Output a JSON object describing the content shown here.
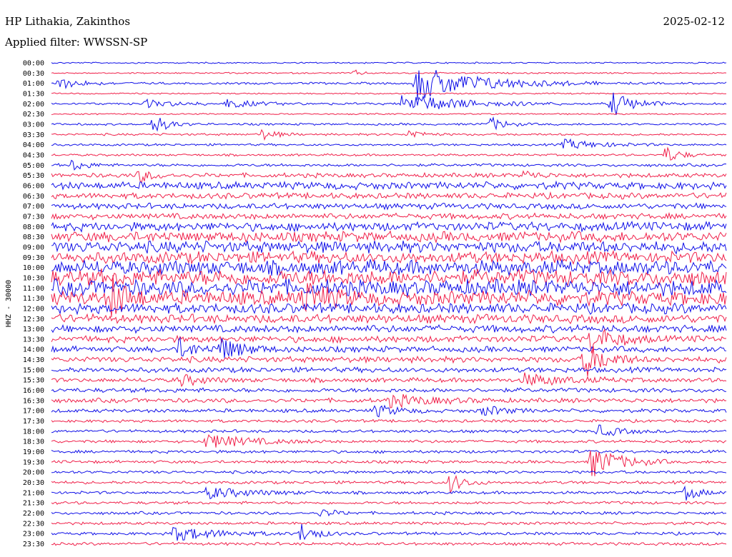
{
  "header": {
    "station": "HP Lithakia, Zakinthos",
    "filter": "Applied filter: WWSSN-SP",
    "date": "2025-02-12"
  },
  "colors": {
    "trace_a": "#1010e8",
    "trace_b": "#f0204a"
  },
  "chart_data": {
    "type": "line",
    "title": "HP Lithakia, Zakinthos",
    "subtitle": "Applied filter: WWSSN-SP",
    "ylabel": "HHZ - 30000",
    "xlabel": "",
    "y_tick_labels": [
      "00:00",
      "00:30",
      "01:00",
      "01:30",
      "02:00",
      "02:30",
      "03:00",
      "03:30",
      "04:00",
      "04:30",
      "05:00",
      "05:30",
      "06:00",
      "06:30",
      "07:00",
      "07:30",
      "08:00",
      "08:30",
      "09:00",
      "09:30",
      "10:00",
      "10:30",
      "11:00",
      "11:30",
      "12:00",
      "12:30",
      "13:00",
      "13:30",
      "14:00",
      "14:30",
      "15:00",
      "15:30",
      "16:00",
      "16:30",
      "17:00",
      "17:30",
      "18:00",
      "18:30",
      "19:00",
      "19:30",
      "20:00",
      "20:30",
      "21:00",
      "21:30",
      "22:00",
      "22:30",
      "23:00",
      "23:30"
    ],
    "series": [
      {
        "color": "#1010e8"
      },
      {
        "color": "#f0204a"
      }
    ],
    "noise_amplitude": [
      1,
      1,
      1.5,
      1,
      1.5,
      1,
      1.5,
      1.5,
      1.5,
      1.5,
      2,
      3,
      5,
      4,
      4,
      4,
      6,
      7,
      8,
      8,
      10,
      11,
      11,
      10,
      7,
      6,
      5,
      4.5,
      4,
      4,
      3.5,
      3,
      3,
      3,
      2.5,
      2,
      2,
      2,
      2,
      2,
      2,
      2,
      2,
      2,
      2,
      2,
      2,
      2
    ],
    "events": [
      {
        "line": 1,
        "x": 0.45,
        "amp": 4,
        "dur": 0.01
      },
      {
        "line": 2,
        "x": 0.01,
        "amp": 8,
        "dur": 0.03
      },
      {
        "line": 2,
        "x": 0.54,
        "amp": 24,
        "dur": 0.09
      },
      {
        "line": 4,
        "x": 0.52,
        "amp": 14,
        "dur": 0.08
      },
      {
        "line": 4,
        "x": 0.83,
        "amp": 18,
        "dur": 0.03
      },
      {
        "line": 4,
        "x": 0.14,
        "amp": 5,
        "dur": 0.04
      },
      {
        "line": 4,
        "x": 0.26,
        "amp": 6,
        "dur": 0.04
      },
      {
        "line": 6,
        "x": 0.15,
        "amp": 14,
        "dur": 0.02
      },
      {
        "line": 6,
        "x": 0.65,
        "amp": 10,
        "dur": 0.02
      },
      {
        "line": 7,
        "x": 0.31,
        "amp": 8,
        "dur": 0.02
      },
      {
        "line": 7,
        "x": 0.53,
        "amp": 7,
        "dur": 0.02
      },
      {
        "line": 8,
        "x": 0.76,
        "amp": 7,
        "dur": 0.05
      },
      {
        "line": 9,
        "x": 0.91,
        "amp": 12,
        "dur": 0.02
      },
      {
        "line": 10,
        "x": 0.03,
        "amp": 8,
        "dur": 0.02
      },
      {
        "line": 11,
        "x": 0.13,
        "amp": 9,
        "dur": 0.02
      },
      {
        "line": 11,
        "x": 0.7,
        "amp": 6,
        "dur": 0.02
      },
      {
        "line": 23,
        "x": 0.09,
        "amp": 28,
        "dur": 0.02
      },
      {
        "line": 23,
        "x": 0.37,
        "amp": 22,
        "dur": 0.03
      },
      {
        "line": 27,
        "x": 0.8,
        "amp": 20,
        "dur": 0.03
      },
      {
        "line": 28,
        "x": 0.19,
        "amp": 14,
        "dur": 0.02
      },
      {
        "line": 28,
        "x": 0.25,
        "amp": 16,
        "dur": 0.03
      },
      {
        "line": 29,
        "x": 0.79,
        "amp": 24,
        "dur": 0.03
      },
      {
        "line": 31,
        "x": 0.19,
        "amp": 8,
        "dur": 0.03
      },
      {
        "line": 31,
        "x": 0.7,
        "amp": 8,
        "dur": 0.06
      },
      {
        "line": 33,
        "x": 0.5,
        "amp": 8,
        "dur": 0.06
      },
      {
        "line": 34,
        "x": 0.48,
        "amp": 8,
        "dur": 0.03
      },
      {
        "line": 34,
        "x": 0.64,
        "amp": 7,
        "dur": 0.03
      },
      {
        "line": 36,
        "x": 0.81,
        "amp": 8,
        "dur": 0.03
      },
      {
        "line": 37,
        "x": 0.23,
        "amp": 10,
        "dur": 0.06
      },
      {
        "line": 39,
        "x": 0.8,
        "amp": 22,
        "dur": 0.04
      },
      {
        "line": 42,
        "x": 0.23,
        "amp": 8,
        "dur": 0.06
      },
      {
        "line": 41,
        "x": 0.59,
        "amp": 14,
        "dur": 0.02
      },
      {
        "line": 42,
        "x": 0.94,
        "amp": 10,
        "dur": 0.02
      },
      {
        "line": 44,
        "x": 0.4,
        "amp": 6,
        "dur": 0.02
      },
      {
        "line": 46,
        "x": 0.18,
        "amp": 10,
        "dur": 0.06
      },
      {
        "line": 46,
        "x": 0.37,
        "amp": 14,
        "dur": 0.02
      }
    ]
  }
}
